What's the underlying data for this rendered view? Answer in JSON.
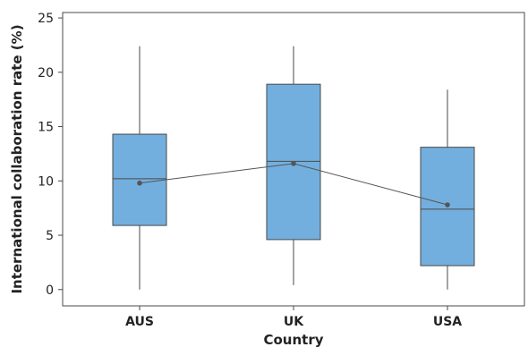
{
  "chart_data": {
    "type": "box",
    "xlabel": "Country",
    "ylabel": "International collaboration rate (%)",
    "ylim": [
      -1.5,
      25.5
    ],
    "yticks": [
      0,
      5,
      10,
      15,
      20,
      25
    ],
    "grid": false,
    "categories": [
      "AUS",
      "UK",
      "USA"
    ],
    "boxes": [
      {
        "category": "AUS",
        "min": 0.0,
        "q1": 5.9,
        "median": 10.2,
        "q3": 14.3,
        "max": 22.4,
        "mean": 9.8
      },
      {
        "category": "UK",
        "min": 0.4,
        "q1": 4.6,
        "median": 11.8,
        "q3": 18.9,
        "max": 22.4,
        "mean": 11.6
      },
      {
        "category": "USA",
        "min": 0.0,
        "q1": 2.2,
        "median": 7.4,
        "q3": 13.1,
        "max": 18.4,
        "mean": 7.8
      }
    ],
    "mean_line": true,
    "colors": {
      "box_fill": "#73afde",
      "box_stroke": "#4a4a4a",
      "whisker": "#4a4a4a",
      "mean_marker": "#555555",
      "axis": "#4a4a4a"
    }
  }
}
